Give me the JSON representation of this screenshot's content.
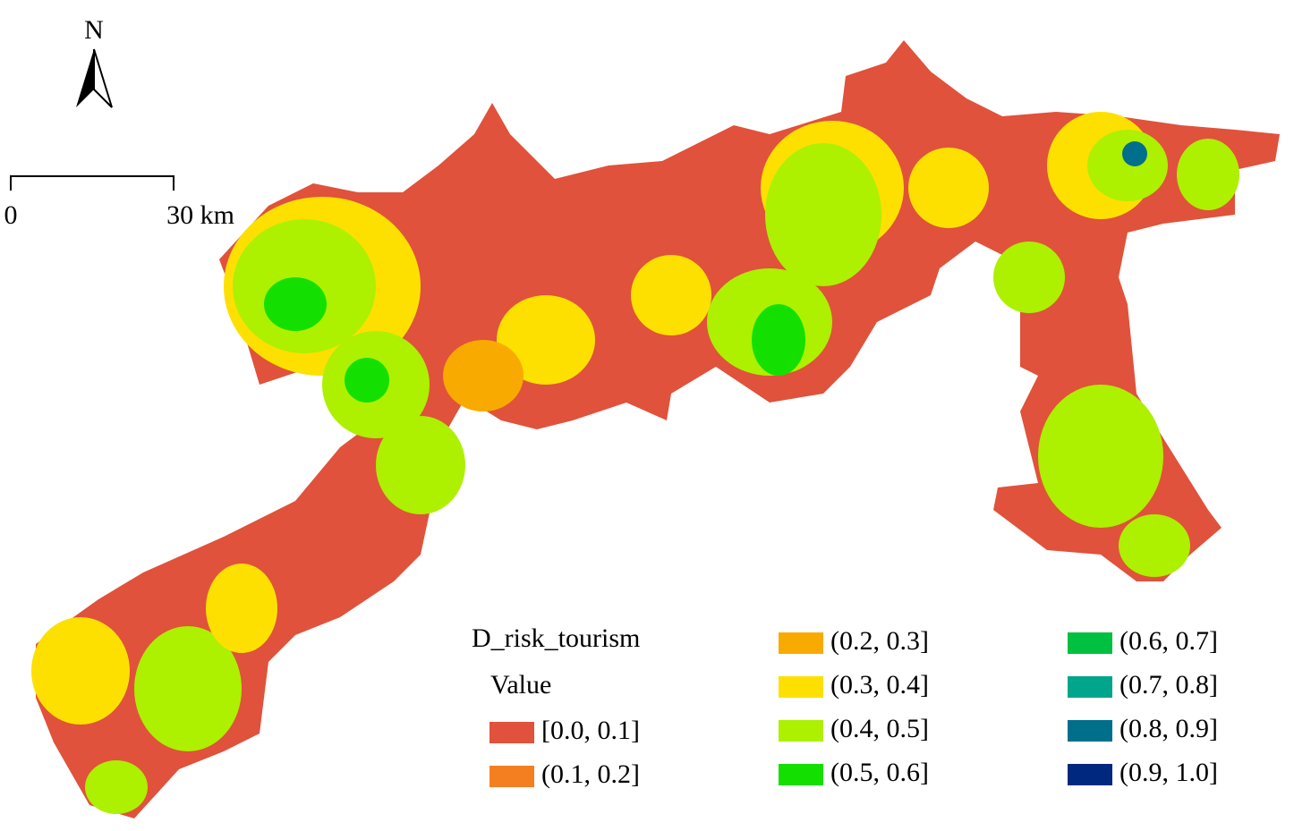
{
  "north_arrow": {
    "label": "N"
  },
  "scale_bar": {
    "start_label": "0",
    "end_label": "30 km"
  },
  "legend": {
    "title": "D_risk_tourism",
    "subtitle": "Value",
    "items": [
      {
        "label": "[0.0, 0.1]",
        "color": "#e0523b"
      },
      {
        "label": "(0.1, 0.2]",
        "color": "#f47f20"
      },
      {
        "label": "(0.2, 0.3]",
        "color": "#f9aa00"
      },
      {
        "label": "(0.3, 0.4]",
        "color": "#fde000"
      },
      {
        "label": "(0.4, 0.5]",
        "color": "#adf000"
      },
      {
        "label": "(0.5, 0.6]",
        "color": "#14e000"
      },
      {
        "label": "(0.6, 0.7]",
        "color": "#00c040"
      },
      {
        "label": "(0.7, 0.8]",
        "color": "#00a68c"
      },
      {
        "label": "(0.8, 0.9]",
        "color": "#006f8c"
      },
      {
        "label": "(0.9, 1.0]",
        "color": "#00287f"
      }
    ]
  }
}
